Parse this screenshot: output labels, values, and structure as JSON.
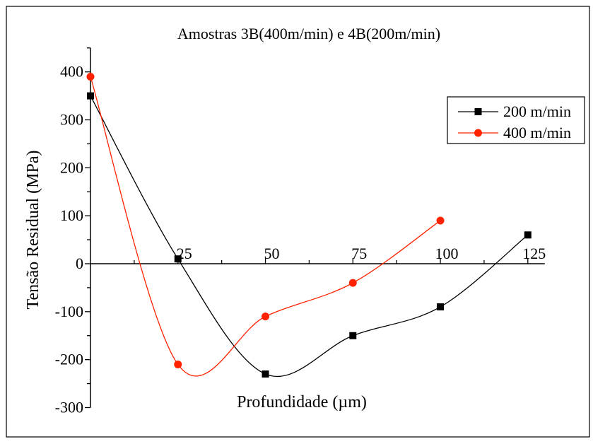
{
  "chart_data": {
    "type": "line",
    "title": "Amostras 3B(400m/min) e 4B(200m/min)",
    "xlabel": "Profundidade (µm)",
    "ylabel": "Tensão Residual (MPa)",
    "xlim": [
      0,
      125
    ],
    "ylim": [
      -300,
      450
    ],
    "x_ticks": [
      25,
      50,
      75,
      100,
      125
    ],
    "y_ticks": [
      400,
      300,
      200,
      100,
      0,
      -100,
      -200,
      -300
    ],
    "grid": false,
    "legend_position": "top-right",
    "series": [
      {
        "name": "200 m/min",
        "color": "#000000",
        "marker": "square",
        "x": [
          0,
          25,
          50,
          75,
          100,
          125
        ],
        "y": [
          350,
          10,
          -230,
          -150,
          -90,
          60
        ]
      },
      {
        "name": "400 m/min",
        "color": "#ff2200",
        "marker": "circle",
        "x": [
          0,
          25,
          50,
          75,
          100
        ],
        "y": [
          390,
          -210,
          -110,
          -40,
          90
        ]
      }
    ]
  }
}
